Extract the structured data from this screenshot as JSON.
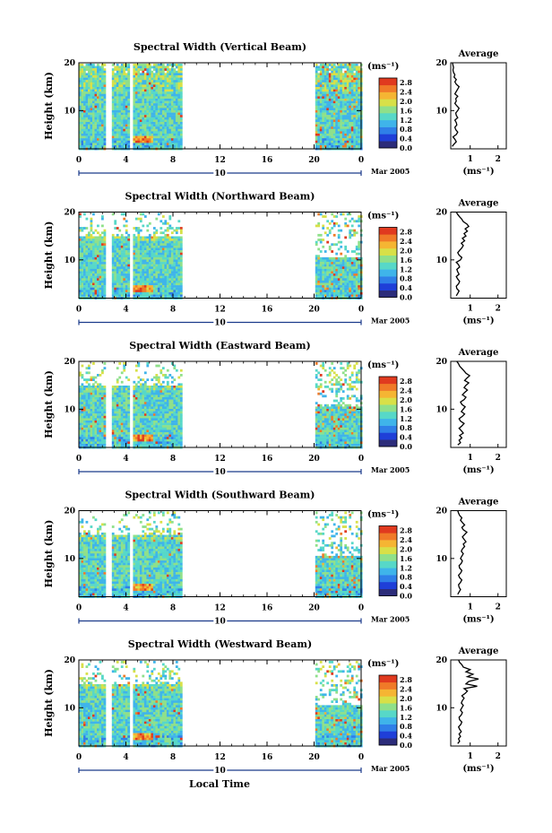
{
  "figure": {
    "xlabel": "Local Time",
    "date_label": "Mar 2005",
    "day_label": "10",
    "colorbar_unit": "(ms⁻¹)",
    "colorbar_ticks": [
      "0.0",
      "0.4",
      "0.8",
      "1.2",
      "1.6",
      "2.0",
      "2.4",
      "2.8"
    ],
    "x_ticks": [
      "0",
      "4",
      "8",
      "12",
      "16",
      "20",
      "0"
    ],
    "y_label": "Height (km)",
    "y_ticks": [
      "10",
      "20"
    ],
    "avg_title": "Average",
    "avg_xlabel": "(ms⁻¹)",
    "avg_x_ticks": [
      "1",
      "2"
    ],
    "avg_y_ticks": [
      "10",
      "20"
    ],
    "colors": [
      "#2c2c7a",
      "#1f3fd8",
      "#2f7fe8",
      "#3fb4ea",
      "#57d8c8",
      "#8fe08a",
      "#d8e048",
      "#f5b533",
      "#f07a28",
      "#e03a1f"
    ]
  },
  "chart_data": [
    {
      "type": "heatmap",
      "title": "Spectral Width (Vertical Beam)",
      "xlabel": "Local Time",
      "ylabel": "Height (km)",
      "xlim": [
        0,
        24
      ],
      "ylim": [
        2,
        20
      ],
      "colorbar_range": [
        0.0,
        3.0
      ],
      "data_blocks_hours": [
        [
          0,
          2.3
        ],
        [
          2.8,
          4.2
        ],
        [
          4.6,
          8.8
        ],
        [
          20.1,
          24
        ]
      ],
      "average_profile": {
        "title": "Average",
        "xlabel": "(ms⁻¹)",
        "xlim": [
          0.3,
          2.3
        ],
        "ylim": [
          2,
          20
        ],
        "x": [
          0.35,
          0.42,
          0.5,
          0.45,
          0.38,
          0.5,
          0.55,
          0.48,
          0.45,
          0.52,
          0.5,
          0.45,
          0.55,
          0.5,
          0.48,
          0.55,
          0.6,
          0.52,
          0.45,
          0.5,
          0.48,
          0.55,
          0.45,
          0.5,
          0.55,
          0.6,
          0.5,
          0.45,
          0.5,
          0.42,
          0.45,
          0.4,
          0.38,
          0.4,
          0.38,
          0.36
        ],
        "y": [
          2.5,
          3,
          3.5,
          4,
          4.5,
          5,
          5.5,
          6,
          6.5,
          7,
          7.5,
          8,
          8.5,
          9,
          9.5,
          10,
          10.5,
          11,
          11.5,
          12,
          12.5,
          13,
          13.5,
          14,
          14.5,
          15,
          15.5,
          16,
          16.5,
          17,
          17.5,
          18,
          18.5,
          19,
          19.5,
          20
        ]
      }
    },
    {
      "type": "heatmap",
      "title": "Spectral Width (Northward Beam)",
      "xlabel": "Local Time",
      "ylabel": "Height (km)",
      "xlim": [
        0,
        24
      ],
      "ylim": [
        2,
        20
      ],
      "colorbar_range": [
        0.0,
        3.0
      ],
      "data_blocks_hours": [
        [
          0,
          2.3
        ],
        [
          2.8,
          4.2
        ],
        [
          4.6,
          8.8
        ],
        [
          20.1,
          24
        ]
      ],
      "average_profile": {
        "title": "Average",
        "xlabel": "(ms⁻¹)",
        "xlim": [
          0.3,
          2.3
        ],
        "ylim": [
          2,
          20
        ],
        "x": [
          0.5,
          0.55,
          0.6,
          0.52,
          0.5,
          0.58,
          0.62,
          0.55,
          0.5,
          0.6,
          0.55,
          0.52,
          0.62,
          0.58,
          0.5,
          0.65,
          0.7,
          0.6,
          0.55,
          0.62,
          0.7,
          0.75,
          0.68,
          0.8,
          0.72,
          0.85,
          0.78,
          0.9,
          0.82,
          0.95,
          0.88,
          0.75,
          0.7,
          0.62,
          0.55,
          0.5
        ],
        "y": [
          2.5,
          3,
          3.5,
          4,
          4.5,
          5,
          5.5,
          6,
          6.5,
          7,
          7.5,
          8,
          8.5,
          9,
          9.5,
          10,
          10.5,
          11,
          11.5,
          12,
          12.5,
          13,
          13.5,
          14,
          14.5,
          15,
          15.5,
          16,
          16.5,
          17,
          17.5,
          18,
          18.5,
          19,
          19.5,
          20
        ]
      }
    },
    {
      "type": "heatmap",
      "title": "Spectral Width (Eastward Beam)",
      "xlabel": "Local Time",
      "ylabel": "Height (km)",
      "xlim": [
        0,
        24
      ],
      "ylim": [
        2,
        20
      ],
      "colorbar_range": [
        0.0,
        3.0
      ],
      "data_blocks_hours": [
        [
          0,
          2.3
        ],
        [
          2.8,
          4.2
        ],
        [
          4.6,
          8.8
        ],
        [
          20.1,
          24
        ]
      ],
      "average_profile": {
        "title": "Average",
        "xlabel": "(ms⁻¹)",
        "xlim": [
          0.3,
          2.3
        ],
        "ylim": [
          2,
          20
        ],
        "x": [
          0.55,
          0.65,
          0.6,
          0.7,
          0.62,
          0.75,
          0.68,
          0.6,
          0.7,
          0.78,
          0.65,
          0.6,
          0.72,
          0.8,
          0.68,
          0.75,
          0.82,
          0.7,
          0.65,
          0.78,
          0.85,
          0.72,
          0.8,
          0.9,
          0.78,
          0.85,
          0.95,
          0.8,
          0.88,
          0.98,
          0.85,
          0.78,
          0.7,
          0.62,
          0.58,
          0.52
        ],
        "y": [
          2.5,
          3,
          3.5,
          4,
          4.5,
          5,
          5.5,
          6,
          6.5,
          7,
          7.5,
          8,
          8.5,
          9,
          9.5,
          10,
          10.5,
          11,
          11.5,
          12,
          12.5,
          13,
          13.5,
          14,
          14.5,
          15,
          15.5,
          16,
          16.5,
          17,
          17.5,
          18,
          18.5,
          19,
          19.5,
          20
        ]
      }
    },
    {
      "type": "heatmap",
      "title": "Spectral Width (Southward Beam)",
      "xlabel": "Local Time",
      "ylabel": "Height (km)",
      "xlim": [
        0,
        24
      ],
      "ylim": [
        2,
        20
      ],
      "colorbar_range": [
        0.0,
        3.0
      ],
      "data_blocks_hours": [
        [
          0,
          2.3
        ],
        [
          2.8,
          4.2
        ],
        [
          4.6,
          8.8
        ],
        [
          20.1,
          24
        ]
      ],
      "average_profile": {
        "title": "Average",
        "xlabel": "(ms⁻¹)",
        "xlim": [
          0.3,
          2.3
        ],
        "ylim": [
          2,
          20
        ],
        "x": [
          0.55,
          0.6,
          0.65,
          0.6,
          0.58,
          0.65,
          0.7,
          0.62,
          0.58,
          0.66,
          0.7,
          0.62,
          0.6,
          0.68,
          0.72,
          0.65,
          0.7,
          0.75,
          0.68,
          0.72,
          0.8,
          0.75,
          0.85,
          0.78,
          0.72,
          0.8,
          0.88,
          0.75,
          0.7,
          0.8,
          0.72,
          0.65,
          0.7,
          0.62,
          0.58,
          0.55
        ],
        "y": [
          2.5,
          3,
          3.5,
          4,
          4.5,
          5,
          5.5,
          6,
          6.5,
          7,
          7.5,
          8,
          8.5,
          9,
          9.5,
          10,
          10.5,
          11,
          11.5,
          12,
          12.5,
          13,
          13.5,
          14,
          14.5,
          15,
          15.5,
          16,
          16.5,
          17,
          17.5,
          18,
          18.5,
          19,
          19.5,
          20
        ]
      }
    },
    {
      "type": "heatmap",
      "title": "Spectral Width (Westward Beam)",
      "xlabel": "Local Time",
      "ylabel": "Height (km)",
      "xlim": [
        0,
        24
      ],
      "ylim": [
        2,
        20
      ],
      "colorbar_range": [
        0.0,
        3.0
      ],
      "data_blocks_hours": [
        [
          0,
          2.3
        ],
        [
          2.8,
          4.2
        ],
        [
          4.6,
          8.8
        ],
        [
          20.1,
          24
        ]
      ],
      "average_profile": {
        "title": "Average",
        "xlabel": "(ms⁻¹)",
        "xlim": [
          0.3,
          2.3
        ],
        "ylim": [
          2,
          20
        ],
        "x": [
          0.55,
          0.62,
          0.58,
          0.65,
          0.6,
          0.68,
          0.62,
          0.58,
          0.66,
          0.7,
          0.62,
          0.6,
          0.68,
          0.72,
          0.65,
          0.7,
          0.75,
          0.68,
          0.72,
          0.78,
          0.7,
          0.82,
          0.9,
          0.78,
          1.25,
          0.85,
          0.95,
          1.3,
          0.9,
          1.1,
          0.85,
          1.0,
          0.75,
          0.7,
          0.62,
          0.58
        ],
        "y": [
          2.5,
          3,
          3.5,
          4,
          4.5,
          5,
          5.5,
          6,
          6.5,
          7,
          7.5,
          8,
          8.5,
          9,
          9.5,
          10,
          10.5,
          11,
          11.5,
          12,
          12.5,
          13,
          13.5,
          14,
          14.5,
          15,
          15.5,
          16,
          16.5,
          17,
          17.5,
          18,
          18.5,
          19,
          19.5,
          20
        ]
      }
    }
  ]
}
